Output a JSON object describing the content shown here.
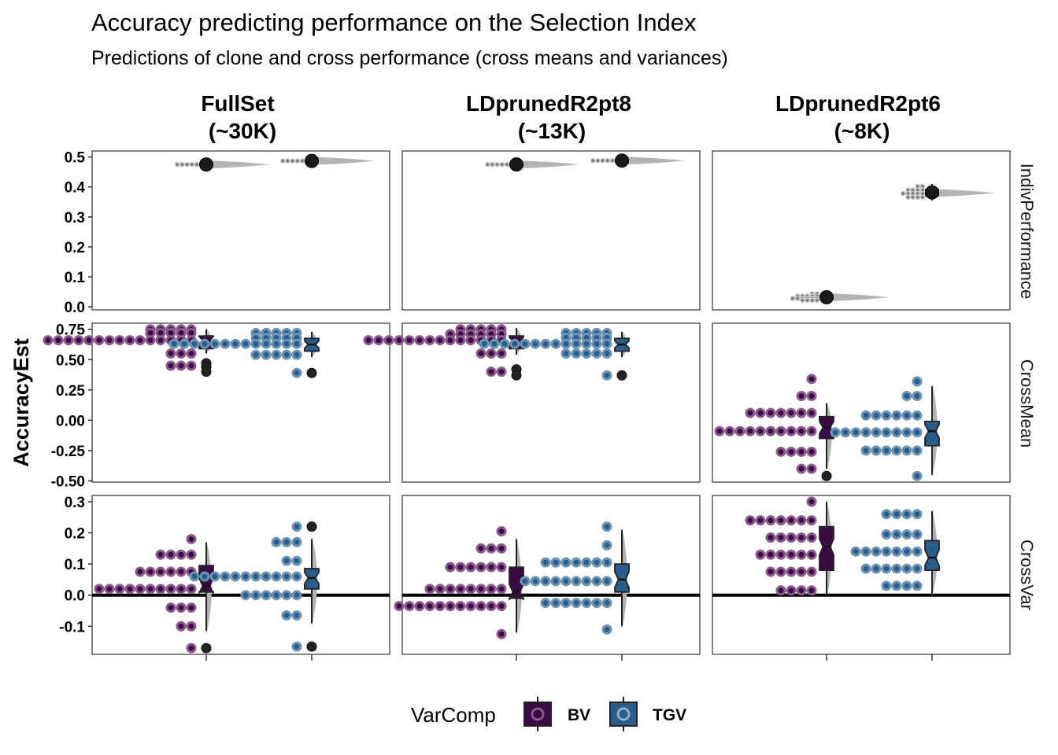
{
  "chart_data": {
    "type": "box",
    "title": "Accuracy predicting performance on the Selection Index",
    "subtitle": "Predictions of clone and cross performance (cross means and variances)",
    "ylabel": "AccuracyEst",
    "xlabel": "",
    "columns": [
      {
        "line1": "FullSet",
        "line2": "(~30K)"
      },
      {
        "line1": "LDprunedR2pt8",
        "line2": "(~13K)"
      },
      {
        "line1": "LDprunedR2pt6",
        "line2": "(~8K)"
      }
    ],
    "rows": [
      {
        "name": "IndivPerformance",
        "ylim": [
          -0.01,
          0.52
        ],
        "ticks": [
          "0.0",
          "0.1",
          "0.2",
          "0.3",
          "0.4",
          "0.5"
        ],
        "tick_values": [
          0,
          0.1,
          0.2,
          0.3,
          0.4,
          0.5
        ],
        "zero_line": false
      },
      {
        "name": "CrossMean",
        "ylim": [
          -0.51,
          0.8
        ],
        "ticks": [
          "-0.50",
          "-0.25",
          "0.00",
          "0.25",
          "0.50",
          "0.75"
        ],
        "tick_values": [
          -0.5,
          -0.25,
          0,
          0.25,
          0.5,
          0.75
        ],
        "zero_line": false
      },
      {
        "name": "CrossVar",
        "ylim": [
          -0.19,
          0.32
        ],
        "ticks": [
          "-0.1",
          "0.0",
          "0.1",
          "0.2",
          "0.3"
        ],
        "tick_values": [
          -0.1,
          0,
          0.1,
          0.2,
          0.3
        ],
        "zero_line": true
      }
    ],
    "legend": {
      "title": "VarComp",
      "position": "bottom",
      "items": [
        {
          "label": "BV",
          "color": "#3b0a45"
        },
        {
          "label": "TGV",
          "color": "#2a5d8a"
        }
      ]
    },
    "colors": {
      "BV": "#3b0a45",
      "TGV": "#2a5d8a",
      "BV_dot": "#8a5a8c",
      "TGV_dot": "#6e94b4",
      "panel_border": "#333333",
      "violin": "#b3b3b3"
    },
    "panels": [
      [
        {
          "BV": {
            "q1": 0.471,
            "median": 0.475,
            "q3": 0.479,
            "lo": 0.468,
            "hi": 0.482,
            "outliers": [],
            "mean": 0.475,
            "dots": [
              {
                "y": 0.475,
                "n": 5
              }
            ],
            "small": true
          },
          "TGV": {
            "q1": 0.483,
            "median": 0.487,
            "q3": 0.491,
            "lo": 0.48,
            "hi": 0.494,
            "outliers": [],
            "mean": 0.487,
            "dots": [
              {
                "y": 0.487,
                "n": 5
              }
            ],
            "small": true
          }
        },
        {
          "BV": {
            "q1": 0.471,
            "median": 0.475,
            "q3": 0.479,
            "lo": 0.468,
            "hi": 0.482,
            "outliers": [],
            "mean": 0.475,
            "dots": [
              {
                "y": 0.475,
                "n": 5
              }
            ],
            "small": true
          },
          "TGV": {
            "q1": 0.484,
            "median": 0.488,
            "q3": 0.492,
            "lo": 0.481,
            "hi": 0.495,
            "outliers": [],
            "mean": 0.488,
            "dots": [
              {
                "y": 0.488,
                "n": 5
              }
            ],
            "small": true
          }
        },
        {
          "BV": {
            "q1": 0.026,
            "median": 0.032,
            "q3": 0.038,
            "lo": 0.02,
            "hi": 0.045,
            "outliers": [],
            "mean": 0.032,
            "dots": [
              {
                "y": 0.044,
                "n": 2
              },
              {
                "y": 0.036,
                "n": 5
              },
              {
                "y": 0.028,
                "n": 6
              },
              {
                "y": 0.022,
                "n": 4
              }
            ],
            "small": true
          },
          "TGV": {
            "q1": 0.37,
            "median": 0.38,
            "q3": 0.392,
            "lo": 0.355,
            "hi": 0.41,
            "outliers": [],
            "mean": 0.382,
            "dots": [
              {
                "y": 0.402,
                "n": 2
              },
              {
                "y": 0.39,
                "n": 4
              },
              {
                "y": 0.378,
                "n": 5
              },
              {
                "y": 0.366,
                "n": 4
              }
            ],
            "small": true
          }
        }
      ],
      [
        {
          "BV": {
            "q1": 0.59,
            "median": 0.66,
            "q3": 0.695,
            "lo": 0.55,
            "hi": 0.75,
            "outliers": [
              0.47,
              0.44,
              0.4
            ],
            "dots": [
              {
                "y": 0.75,
                "n": 5
              },
              {
                "y": 0.72,
                "n": 5
              },
              {
                "y": 0.66,
                "n": 15
              },
              {
                "y": 0.55,
                "n": 3
              },
              {
                "y": 0.45,
                "n": 3
              }
            ]
          },
          "TGV": {
            "q1": 0.57,
            "median": 0.625,
            "q3": 0.675,
            "lo": 0.52,
            "hi": 0.73,
            "outliers": [
              0.39
            ],
            "dots": [
              {
                "y": 0.72,
                "n": 5
              },
              {
                "y": 0.68,
                "n": 5
              },
              {
                "y": 0.63,
                "n": 13
              },
              {
                "y": 0.54,
                "n": 5
              },
              {
                "y": 0.39,
                "n": 1
              }
            ]
          }
        },
        {
          "BV": {
            "q1": 0.59,
            "median": 0.655,
            "q3": 0.695,
            "lo": 0.54,
            "hi": 0.76,
            "outliers": [
              0.42,
              0.37
            ],
            "dots": [
              {
                "y": 0.75,
                "n": 5
              },
              {
                "y": 0.71,
                "n": 6
              },
              {
                "y": 0.66,
                "n": 14
              },
              {
                "y": 0.55,
                "n": 3
              },
              {
                "y": 0.4,
                "n": 2
              }
            ]
          },
          "TGV": {
            "q1": 0.57,
            "median": 0.625,
            "q3": 0.675,
            "lo": 0.52,
            "hi": 0.73,
            "outliers": [
              0.37
            ],
            "dots": [
              {
                "y": 0.72,
                "n": 5
              },
              {
                "y": 0.68,
                "n": 5
              },
              {
                "y": 0.63,
                "n": 13
              },
              {
                "y": 0.55,
                "n": 5
              },
              {
                "y": 0.37,
                "n": 1
              }
            ]
          }
        },
        {
          "BV": {
            "q1": -0.15,
            "median": -0.06,
            "q3": 0.03,
            "lo": -0.4,
            "hi": 0.14,
            "outliers": [
              -0.46
            ],
            "dots": [
              {
                "y": 0.34,
                "n": 1
              },
              {
                "y": 0.2,
                "n": 2
              },
              {
                "y": 0.06,
                "n": 7
              },
              {
                "y": -0.09,
                "n": 10
              },
              {
                "y": -0.26,
                "n": 4
              },
              {
                "y": -0.4,
                "n": 2
              }
            ]
          },
          "TGV": {
            "q1": -0.21,
            "median": -0.09,
            "q3": -0.01,
            "lo": -0.45,
            "hi": 0.28,
            "outliers": [],
            "dots": [
              {
                "y": 0.32,
                "n": 1
              },
              {
                "y": 0.2,
                "n": 2
              },
              {
                "y": 0.04,
                "n": 6
              },
              {
                "y": -0.1,
                "n": 9
              },
              {
                "y": -0.25,
                "n": 6
              },
              {
                "y": -0.46,
                "n": 1
              }
            ]
          }
        }
      ],
      [
        {
          "BV": {
            "q1": 0.01,
            "median": 0.03,
            "q3": 0.095,
            "lo": -0.115,
            "hi": 0.17,
            "outliers": [
              -0.17
            ],
            "dots": [
              {
                "y": 0.18,
                "n": 1
              },
              {
                "y": 0.13,
                "n": 4
              },
              {
                "y": 0.075,
                "n": 6
              },
              {
                "y": 0.02,
                "n": 10
              },
              {
                "y": -0.04,
                "n": 3
              },
              {
                "y": -0.1,
                "n": 2
              },
              {
                "y": -0.17,
                "n": 1
              }
            ]
          },
          "TGV": {
            "q1": 0.02,
            "median": 0.055,
            "q3": 0.085,
            "lo": -0.09,
            "hi": 0.18,
            "outliers": [
              0.22,
              -0.165
            ],
            "dots": [
              {
                "y": 0.22,
                "n": 1
              },
              {
                "y": 0.17,
                "n": 3
              },
              {
                "y": 0.11,
                "n": 2
              },
              {
                "y": 0.06,
                "n": 11
              },
              {
                "y": 0.0,
                "n": 6
              },
              {
                "y": -0.065,
                "n": 2
              },
              {
                "y": -0.165,
                "n": 1
              }
            ]
          }
        },
        {
          "BV": {
            "q1": -0.01,
            "median": 0.01,
            "q3": 0.09,
            "lo": -0.12,
            "hi": 0.18,
            "outliers": [],
            "dots": [
              {
                "y": 0.205,
                "n": 1
              },
              {
                "y": 0.15,
                "n": 3
              },
              {
                "y": 0.09,
                "n": 6
              },
              {
                "y": 0.02,
                "n": 8
              },
              {
                "y": -0.035,
                "n": 11
              },
              {
                "y": -0.125,
                "n": 1
              }
            ]
          },
          "TGV": {
            "q1": 0.01,
            "median": 0.05,
            "q3": 0.1,
            "lo": -0.1,
            "hi": 0.21,
            "outliers": [],
            "dots": [
              {
                "y": 0.22,
                "n": 1
              },
              {
                "y": 0.16,
                "n": 1
              },
              {
                "y": 0.105,
                "n": 7
              },
              {
                "y": 0.045,
                "n": 9
              },
              {
                "y": -0.025,
                "n": 7
              },
              {
                "y": -0.11,
                "n": 1
              }
            ]
          }
        },
        {
          "BV": {
            "q1": 0.08,
            "median": 0.155,
            "q3": 0.22,
            "lo": -0.005,
            "hi": 0.3,
            "outliers": [],
            "dots": [
              {
                "y": 0.3,
                "n": 1
              },
              {
                "y": 0.24,
                "n": 7
              },
              {
                "y": 0.185,
                "n": 5
              },
              {
                "y": 0.13,
                "n": 6
              },
              {
                "y": 0.075,
                "n": 5
              },
              {
                "y": 0.015,
                "n": 4
              }
            ]
          },
          "TGV": {
            "q1": 0.08,
            "median": 0.12,
            "q3": 0.175,
            "lo": 0.005,
            "hi": 0.27,
            "outliers": [],
            "dots": [
              {
                "y": 0.26,
                "n": 4
              },
              {
                "y": 0.195,
                "n": 4
              },
              {
                "y": 0.14,
                "n": 7
              },
              {
                "y": 0.085,
                "n": 6
              },
              {
                "y": 0.03,
                "n": 4
              }
            ]
          }
        }
      ]
    ]
  }
}
